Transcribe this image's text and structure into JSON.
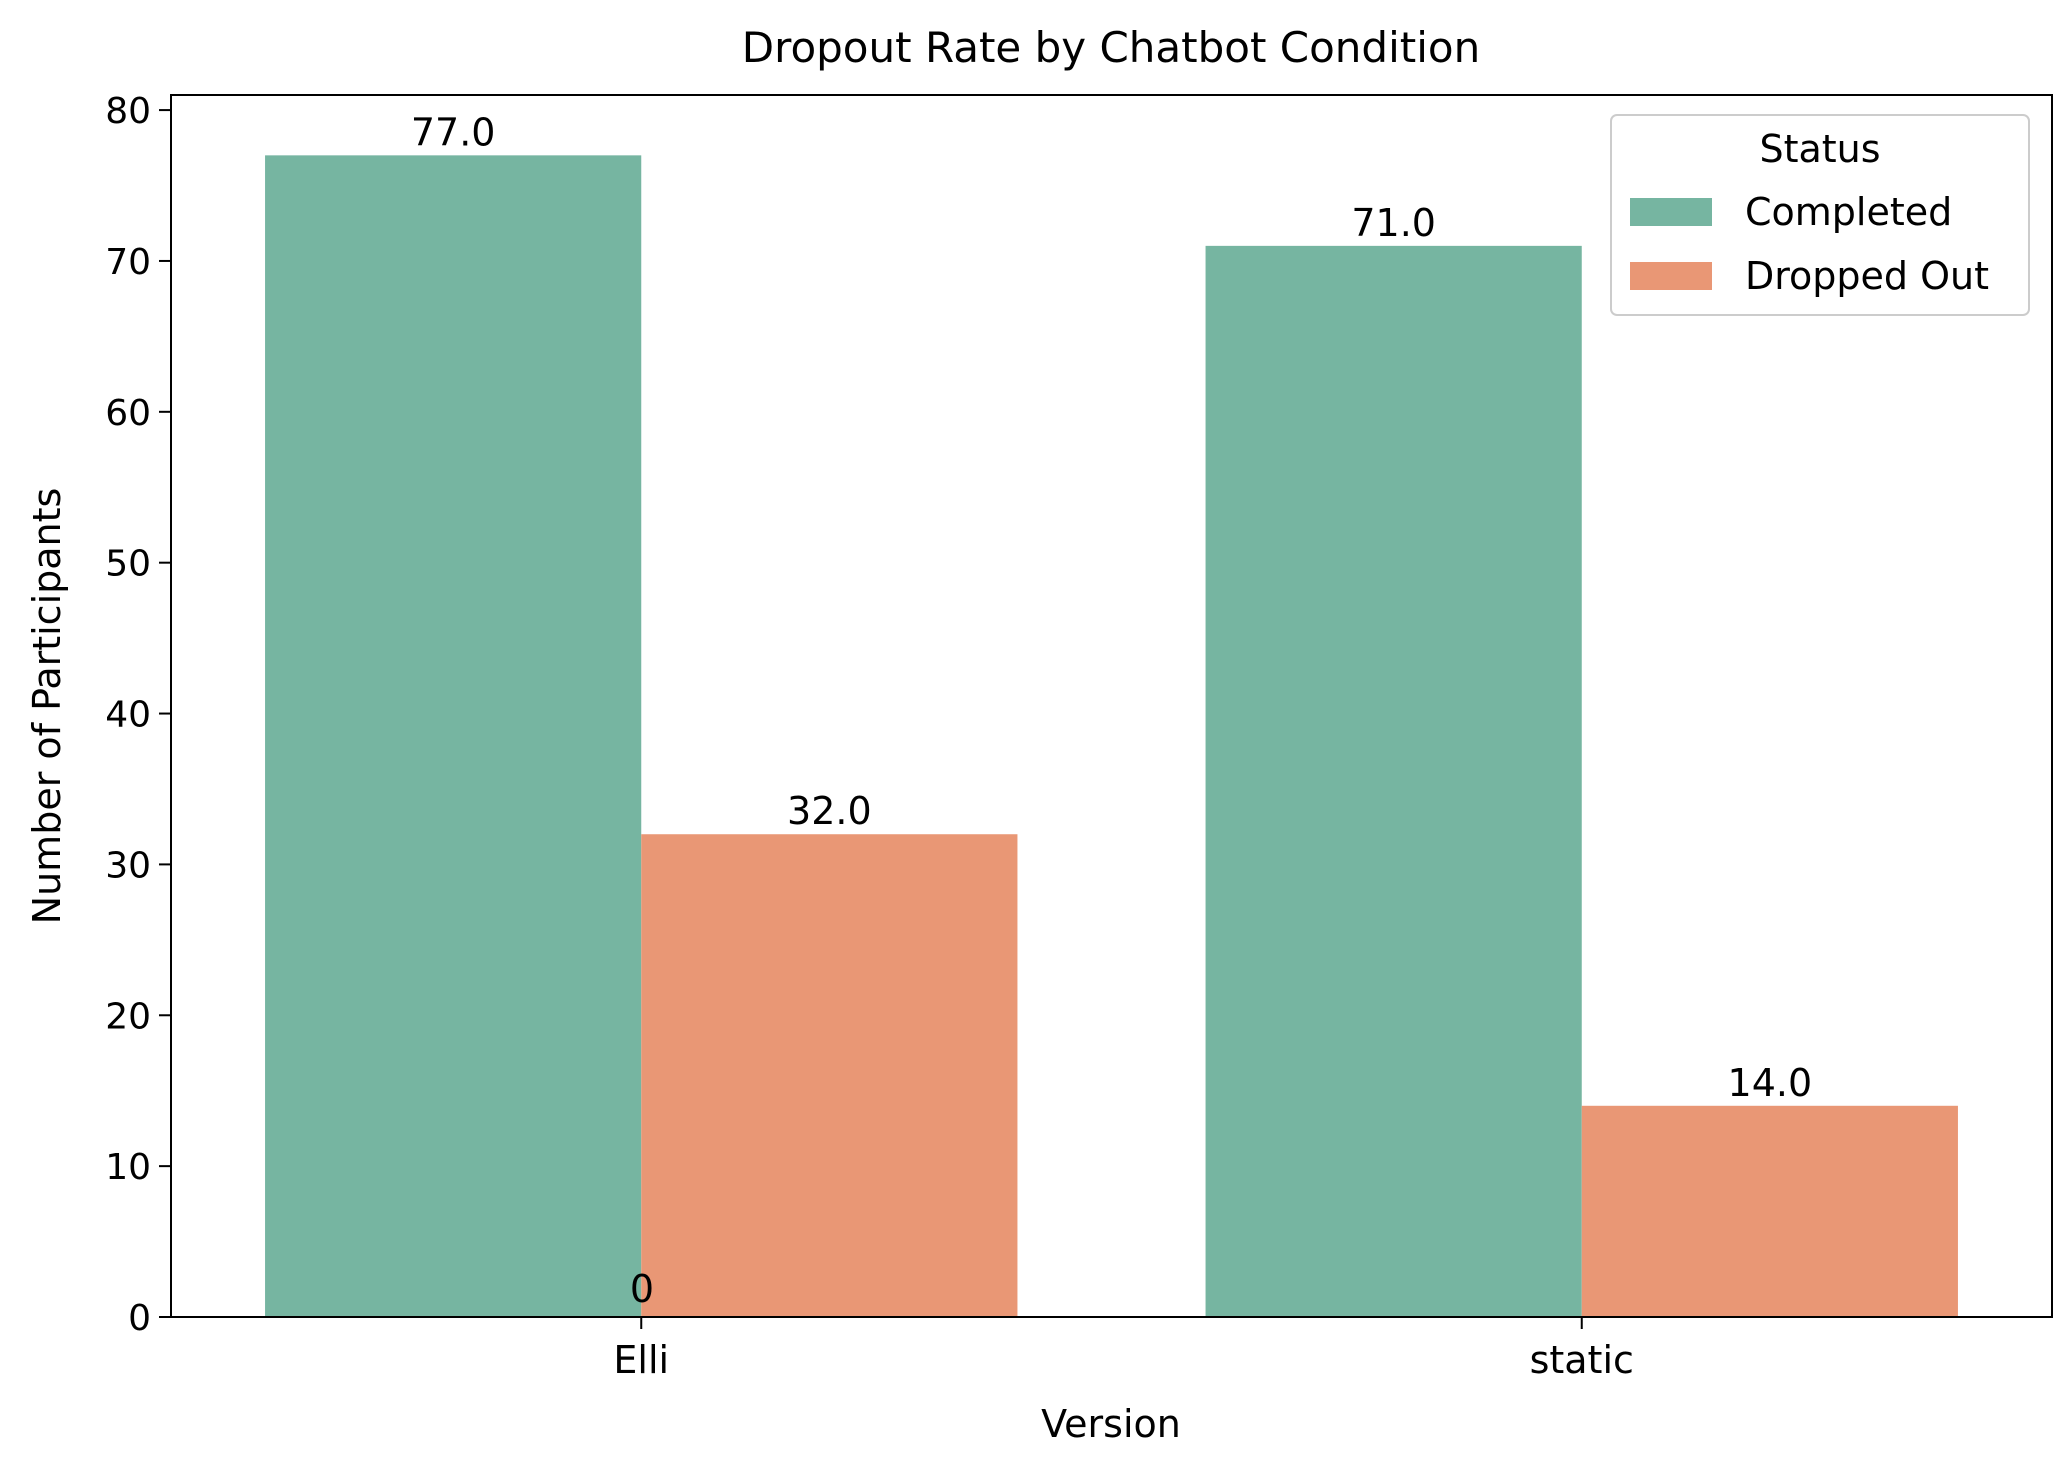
{
  "chart_data": {
    "type": "bar",
    "title": "Dropout Rate by Chatbot Condition",
    "xlabel": "Version",
    "ylabel": "Number of Participants",
    "categories": [
      "Elli",
      "static"
    ],
    "series": [
      {
        "name": "Completed",
        "values": [
          77,
          71
        ],
        "labels": [
          "77.0",
          "71.0"
        ],
        "color": "#76b5a1"
      },
      {
        "name": "Dropped Out",
        "values": [
          32,
          14
        ],
        "labels": [
          "32.0",
          "14.0"
        ],
        "color": "#e99775"
      }
    ],
    "extra_label": "0",
    "ylim": [
      0,
      81
    ],
    "yticks": [
      0,
      10,
      20,
      30,
      40,
      50,
      60,
      70,
      80
    ],
    "grid": false,
    "legend": {
      "title": "Status",
      "placement": "top-right"
    }
  }
}
